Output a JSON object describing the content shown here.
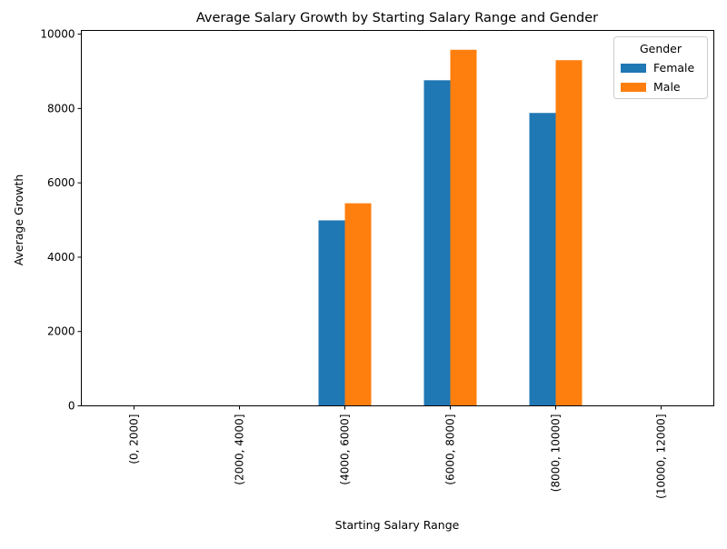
{
  "chart_data": {
    "type": "bar",
    "title": "Average Salary Growth by Starting Salary Range and Gender",
    "xlabel": "Starting Salary Range",
    "ylabel": "Average Growth",
    "categories": [
      "(0, 2000]",
      "(2000, 4000]",
      "(4000, 6000]",
      "(6000, 8000]",
      "(8000, 10000]",
      "(10000, 12000]"
    ],
    "series": [
      {
        "name": "Female",
        "color": "#1f77b4",
        "values": [
          null,
          null,
          4990,
          8760,
          7880,
          null
        ]
      },
      {
        "name": "Male",
        "color": "#ff7f0e",
        "values": [
          null,
          null,
          5450,
          9580,
          9300,
          null
        ]
      }
    ],
    "ylim": [
      0,
      10100
    ],
    "yticks": [
      0,
      2000,
      4000,
      6000,
      8000,
      10000
    ],
    "legend": {
      "title": "Gender",
      "placement": "top-right"
    },
    "grid": false
  }
}
